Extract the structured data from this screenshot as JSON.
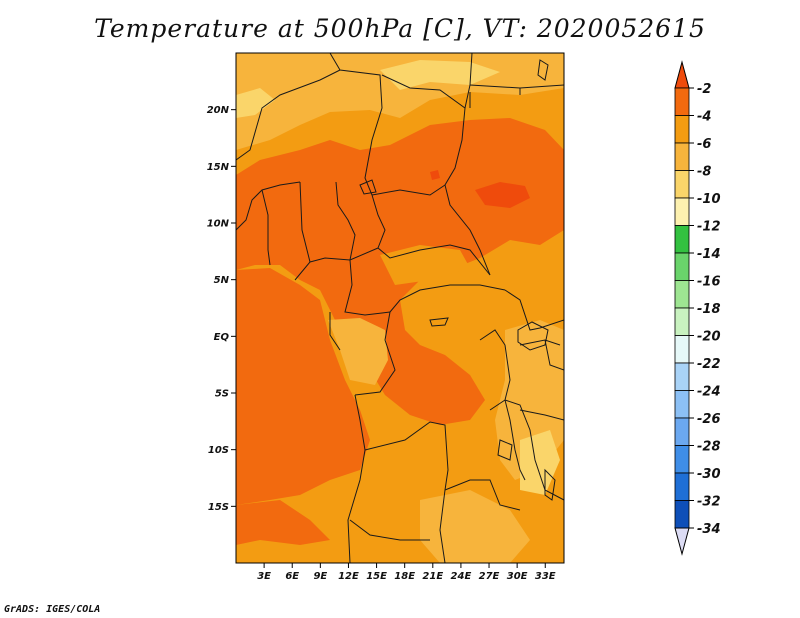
{
  "title": "Temperature at 500hPa [C], VT: 2020052615",
  "credit": "GrADS: IGES/COLA",
  "map": {
    "lon_range": [
      0,
      35
    ],
    "lat_range": [
      -20,
      25
    ],
    "lat_ticks": [
      {
        "value": 20,
        "label": "20N"
      },
      {
        "value": 15,
        "label": "15N"
      },
      {
        "value": 10,
        "label": "10N"
      },
      {
        "value": 5,
        "label": "5N"
      },
      {
        "value": 0,
        "label": "EQ"
      },
      {
        "value": -5,
        "label": "5S"
      },
      {
        "value": -10,
        "label": "10S"
      },
      {
        "value": -15,
        "label": "15S"
      }
    ],
    "lon_ticks": [
      {
        "value": 3,
        "label": "3E"
      },
      {
        "value": 6,
        "label": "6E"
      },
      {
        "value": 9,
        "label": "9E"
      },
      {
        "value": 12,
        "label": "12E"
      },
      {
        "value": 15,
        "label": "15E"
      },
      {
        "value": 18,
        "label": "18E"
      },
      {
        "value": 21,
        "label": "21E"
      },
      {
        "value": 24,
        "label": "24E"
      },
      {
        "value": 27,
        "label": "27E"
      },
      {
        "value": 30,
        "label": "30E"
      },
      {
        "value": 33,
        "label": "33E"
      }
    ],
    "colors": {
      "t_-8_-6": "#f7b43c",
      "t_-6_-4": "#f39c12",
      "t_-4_-2": "#f26a0f",
      "t_-3": "#ef4b0c",
      "t_-10_-8": "#fad56a",
      "border": "#1a1a1a"
    }
  },
  "colorbar": {
    "levels": [
      "-2",
      "-4",
      "-6",
      "-8",
      "-10",
      "-12",
      "-14",
      "-16",
      "-18",
      "-20",
      "-22",
      "-24",
      "-26",
      "-28",
      "-30",
      "-32",
      "-34"
    ],
    "colors": [
      "#f26a0f",
      "#f39c12",
      "#f7b43c",
      "#fad56a",
      "#fdf1b0",
      "#33c140",
      "#6ad46b",
      "#9ee592",
      "#c9f2c0",
      "#e6f8f8",
      "#a9d3f7",
      "#8cc0f5",
      "#6ba8f0",
      "#3f8ee8",
      "#1f6fd6",
      "#0e4fb8",
      "#0a1778"
    ],
    "top_arrow_color": "#ef4b0c",
    "bottom_arrow_color": "#dcdcf4"
  }
}
